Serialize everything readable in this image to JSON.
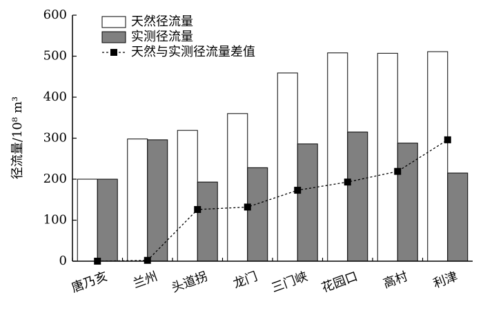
{
  "chart_data": {
    "type": "bar",
    "y_label": "径流量/10⁸ m³",
    "categories": [
      "唐乃亥",
      "兰州",
      "头道拐",
      "龙门",
      "三门峡",
      "花园口",
      "高村",
      "利津"
    ],
    "series": [
      {
        "name": "天然径流量",
        "type": "bar",
        "color": "#ffffff",
        "values": [
          200,
          298,
          319,
          360,
          459,
          508,
          507,
          511
        ]
      },
      {
        "name": "实测径流量",
        "type": "bar",
        "color": "#808080",
        "values": [
          200,
          296,
          193,
          228,
          286,
          315,
          288,
          215
        ]
      },
      {
        "name": "天然与实测径流量差值",
        "type": "line",
        "color": "#000000",
        "values": [
          0,
          2,
          126,
          132,
          173,
          193,
          219,
          296
        ]
      }
    ],
    "ylim": [
      0,
      600
    ],
    "yticks": [
      0,
      100,
      200,
      300,
      400,
      500,
      600
    ],
    "legend": "upper left"
  }
}
